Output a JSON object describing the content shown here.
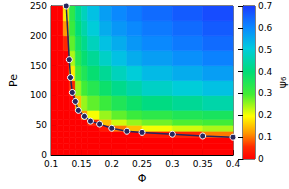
{
  "chart_data": {
    "type": "heatmap",
    "xlabel": "Φ",
    "ylabel": "Pe",
    "xlim": [
      0.1,
      0.4
    ],
    "xticks": [
      0.1,
      0.15,
      0.2,
      0.25,
      0.3,
      0.35,
      0.4
    ],
    "ylim": [
      0,
      250
    ],
    "yticks": [
      0,
      50,
      100,
      150,
      200,
      250
    ],
    "grid": false,
    "heatmap": {
      "x_edges": [
        0.1,
        0.11,
        0.12,
        0.13,
        0.14,
        0.15,
        0.16,
        0.18,
        0.2,
        0.225,
        0.25,
        0.3,
        0.35,
        0.4
      ],
      "y_edges": [
        0,
        10,
        20,
        30,
        40,
        50,
        60,
        75,
        100,
        125,
        150,
        175,
        200,
        225,
        250
      ],
      "values": [
        [
          0,
          0,
          0,
          0,
          0,
          0,
          0,
          0,
          0,
          0,
          0,
          0,
          0
        ],
        [
          0,
          0,
          0,
          0,
          0,
          0,
          0,
          0,
          0,
          0,
          0,
          0,
          0
        ],
        [
          0,
          0,
          0,
          0,
          0,
          0,
          0,
          0,
          0,
          0,
          0,
          0,
          0
        ],
        [
          0,
          0,
          0,
          0,
          0,
          0,
          0,
          0,
          0,
          0,
          0.03,
          0.05,
          0.1
        ],
        [
          0,
          0,
          0,
          0,
          0,
          0,
          0,
          0.03,
          0.1,
          0.15,
          0.2,
          0.22,
          0.24
        ],
        [
          0,
          0,
          0,
          0,
          0,
          0,
          0.05,
          0.15,
          0.22,
          0.25,
          0.27,
          0.29,
          0.3
        ],
        [
          0,
          0,
          0,
          0,
          0,
          0.12,
          0.2,
          0.25,
          0.28,
          0.31,
          0.33,
          0.35,
          0.36
        ],
        [
          0,
          0,
          0,
          0,
          0.15,
          0.25,
          0.28,
          0.31,
          0.35,
          0.38,
          0.41,
          0.43,
          0.45
        ],
        [
          0,
          0,
          0,
          0.05,
          0.25,
          0.3,
          0.34,
          0.38,
          0.42,
          0.45,
          0.48,
          0.5,
          0.52
        ],
        [
          0,
          0,
          0,
          0.18,
          0.3,
          0.35,
          0.39,
          0.43,
          0.47,
          0.5,
          0.53,
          0.55,
          0.57
        ],
        [
          0,
          0,
          0,
          0.24,
          0.34,
          0.39,
          0.43,
          0.48,
          0.52,
          0.55,
          0.57,
          0.59,
          0.61
        ],
        [
          0,
          0,
          0.05,
          0.28,
          0.37,
          0.42,
          0.47,
          0.52,
          0.55,
          0.58,
          0.6,
          0.62,
          0.64
        ],
        [
          0,
          0,
          0.12,
          0.31,
          0.4,
          0.45,
          0.5,
          0.55,
          0.58,
          0.6,
          0.62,
          0.64,
          0.66
        ],
        [
          0,
          0,
          0.18,
          0.33,
          0.42,
          0.47,
          0.52,
          0.57,
          0.6,
          0.62,
          0.64,
          0.66,
          0.68
        ]
      ]
    },
    "colorbar": {
      "label": "ψ₆",
      "range": [
        0,
        0.7
      ],
      "ticks": [
        0,
        0.1,
        0.2,
        0.3,
        0.4,
        0.5,
        0.6,
        0.7
      ]
    },
    "series": [
      {
        "type": "line",
        "color": "#26265e",
        "marker": "circle",
        "x": [
          0.125,
          0.13,
          0.132,
          0.135,
          0.14,
          0.145,
          0.155,
          0.165,
          0.18,
          0.2,
          0.225,
          0.25,
          0.3,
          0.35,
          0.4
        ],
        "values": [
          250,
          160,
          130,
          105,
          90,
          75,
          65,
          57,
          52,
          45,
          40,
          38,
          35,
          32,
          30
        ]
      }
    ]
  }
}
